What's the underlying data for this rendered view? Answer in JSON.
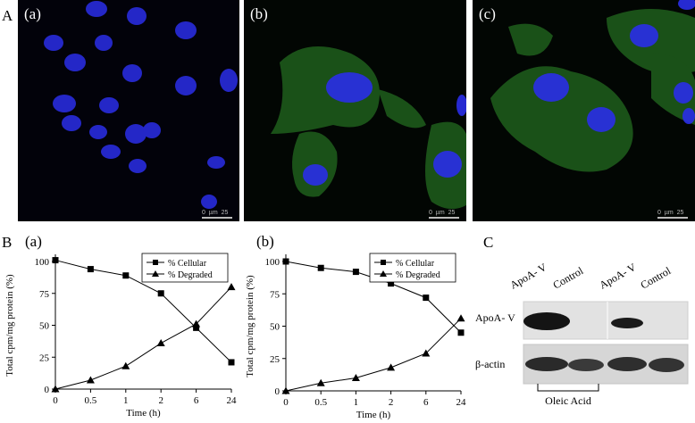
{
  "figure_labels": {
    "A": "A",
    "B": "B",
    "C": "C"
  },
  "micrographs": [
    {
      "label": "(a)",
      "scale_unit": "µm",
      "scale_value": "25",
      "cell_color": "#2a2ee8",
      "stain_color": "#2f8f2a"
    },
    {
      "label": "(b)",
      "scale_unit": "µm",
      "scale_value": "25",
      "cell_color": "#2a2ee8",
      "stain_color": "#2f8f2a"
    },
    {
      "label": "(c)",
      "scale_unit": "µm",
      "scale_value": "25",
      "cell_color": "#2a2ee8",
      "stain_color": "#2f8f2a"
    }
  ],
  "chart_data": [
    {
      "type": "line",
      "panel_label": "(a)",
      "x": [
        "0",
        "0.5",
        "1",
        "2",
        "6",
        "24"
      ],
      "series": [
        {
          "name": "% Cellular",
          "marker": "square",
          "values": [
            101,
            94,
            89,
            75,
            48,
            21
          ]
        },
        {
          "name": "% Degraded",
          "marker": "triangle",
          "values": [
            0,
            7,
            18,
            36,
            51,
            80
          ]
        }
      ],
      "xlabel": "Time (h)",
      "ylabel": "Total cpm/mg protein (%)",
      "yticks": [
        0,
        25,
        50,
        75,
        100
      ],
      "ylim": [
        0,
        100
      ],
      "legend_position": "top-right",
      "grid": false
    },
    {
      "type": "line",
      "panel_label": "(b)",
      "x": [
        "0",
        "0.5",
        "1",
        "2",
        "6",
        "24"
      ],
      "series": [
        {
          "name": "% Cellular",
          "marker": "square",
          "values": [
            100,
            95,
            92,
            83,
            72,
            45
          ]
        },
        {
          "name": "% Degraded",
          "marker": "triangle",
          "values": [
            0,
            6,
            10,
            18,
            29,
            56
          ]
        }
      ],
      "xlabel": "Time (h)",
      "ylabel": "Total cpm/mg protein (%)",
      "yticks": [
        0,
        25,
        50,
        75,
        100
      ],
      "ylim": [
        0,
        100
      ],
      "legend_position": "top-right",
      "grid": false
    }
  ],
  "western_blot": {
    "lane_labels": [
      "ApoA- V",
      "Control",
      "ApoA- V",
      "Control"
    ],
    "row_labels": [
      "ApoA- V",
      "β-actin"
    ],
    "bracket_label": "Oleic Acid"
  }
}
